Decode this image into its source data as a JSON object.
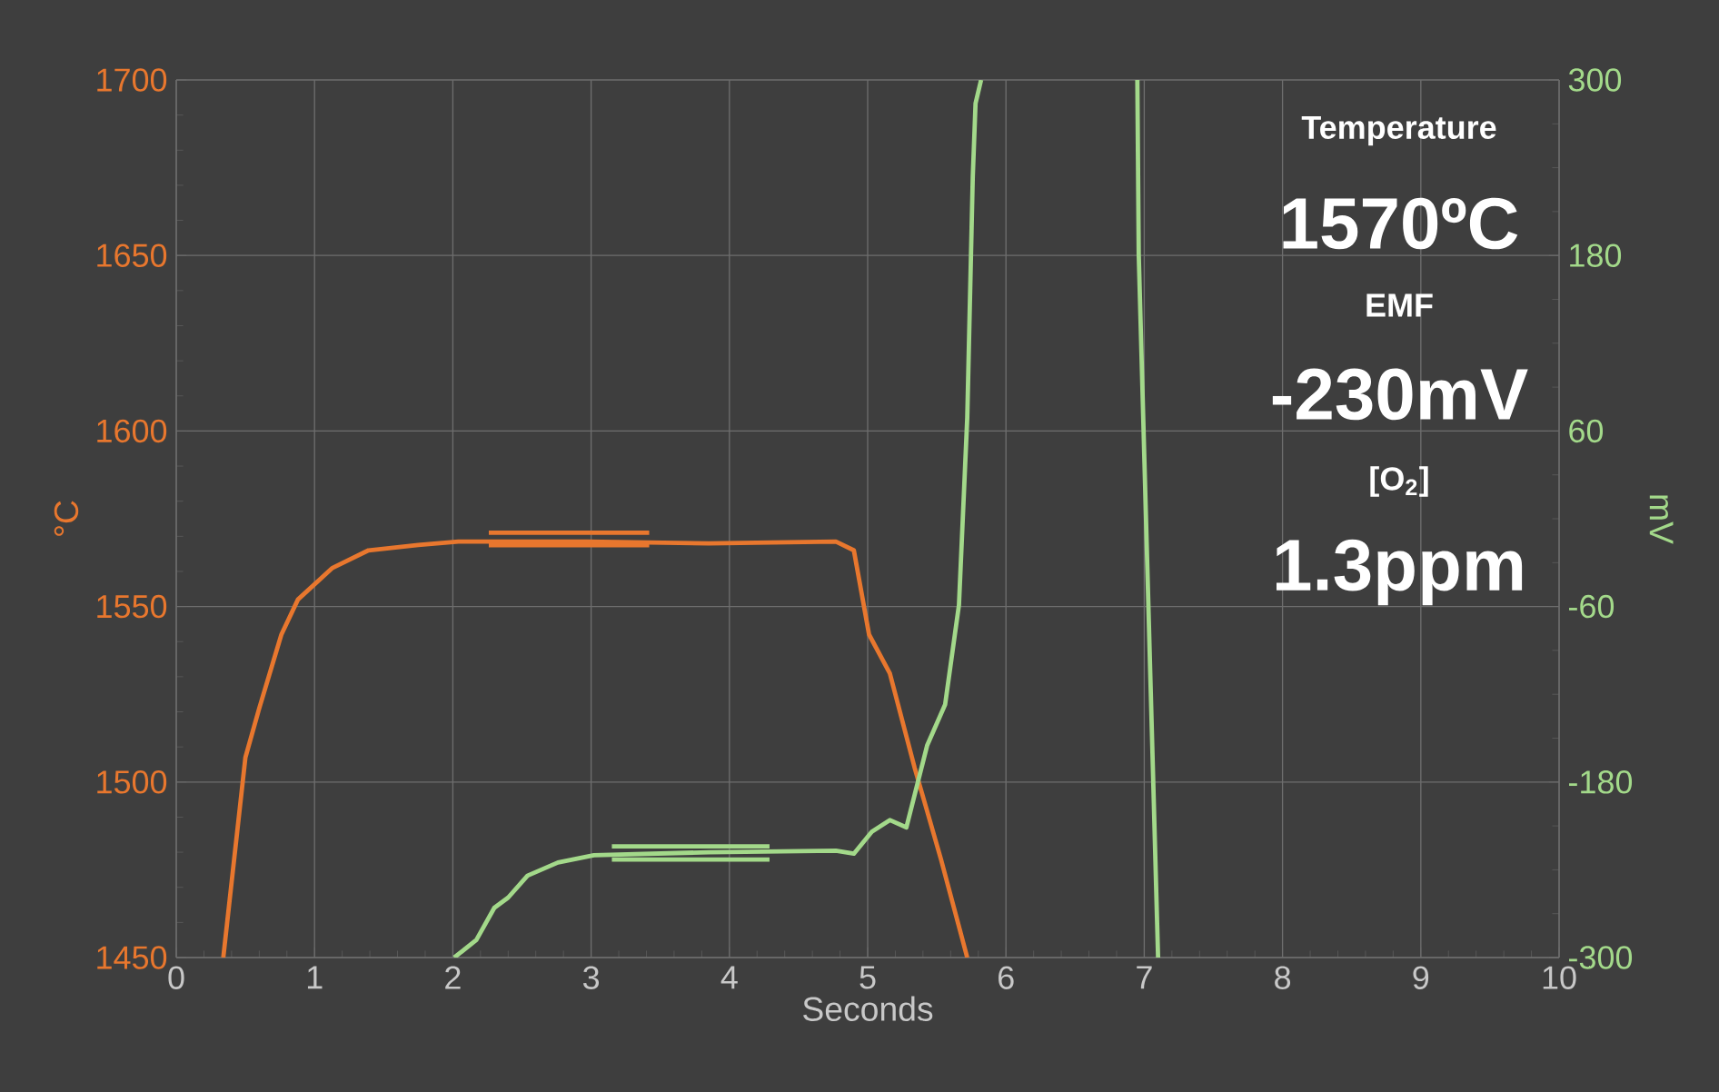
{
  "chart_data": {
    "type": "line",
    "xlabel": "Seconds",
    "ylabel": "°C",
    "y2label": "mV",
    "xlim": [
      0,
      10
    ],
    "xticks": [
      0,
      1,
      2,
      3,
      4,
      5,
      6,
      7,
      8,
      9,
      10
    ],
    "ylim": [
      1450,
      1700
    ],
    "yticks": [
      1450,
      1500,
      1550,
      1600,
      1650,
      1700
    ],
    "y2lim": [
      -300,
      300
    ],
    "y2ticks": [
      -300,
      -180,
      -60,
      60,
      180,
      300
    ],
    "grid": true,
    "line_style": "solid",
    "marker": "none",
    "series": [
      {
        "color": "#e8772e",
        "x": [
          0.34,
          0.5,
          0.6,
          0.76,
          0.88,
          1.13,
          1.39,
          1.75,
          2.04,
          2.97,
          3.85,
          4.77,
          4.9,
          5.01,
          5.16,
          5.34,
          5.53,
          5.72
        ],
        "values": [
          1450,
          1507,
          1521,
          1542,
          1552,
          1561,
          1566,
          1567.5,
          1568.5,
          1568.5,
          1568,
          1568.5,
          1566,
          1542,
          1531,
          1504,
          1478,
          1450
        ]
      },
      {
        "color": "#a3d98a",
        "axis": "y2",
        "x": [
          2.01,
          2.17,
          2.3,
          2.4,
          2.54,
          2.76,
          3.02,
          3.85,
          4.77,
          4.9,
          5.03,
          5.16,
          5.28,
          5.43,
          5.56,
          5.66,
          5.72,
          5.76,
          5.78,
          5.82,
          6.4,
          6.95,
          6.96,
          7.1
        ],
        "values": [
          -300,
          -288,
          -266,
          -259,
          -244,
          -235,
          -230,
          -228,
          -227,
          -229,
          -214,
          -206,
          -211,
          -155,
          -127,
          -59,
          69,
          234,
          284,
          300,
          null,
          300,
          181,
          -300
        ]
      },
      {
        "color": "#e8772e",
        "x": [
          2.26,
          3.42
        ],
        "values": [
          1571,
          1571
        ]
      },
      {
        "color": "#e8772e",
        "x": [
          2.26,
          3.42
        ],
        "values": [
          1567.5,
          1567.5
        ]
      },
      {
        "color": "#a3d98a",
        "axis": "y2",
        "x": [
          3.15,
          4.29
        ],
        "values": [
          -224,
          -224
        ]
      },
      {
        "color": "#a3d98a",
        "axis": "y2",
        "x": [
          3.15,
          4.29
        ],
        "values": [
          -233,
          -233
        ]
      }
    ],
    "annotations": [
      "Temperature",
      "1570ºC",
      "EMF",
      "-230mV",
      "[O$_{2}$]",
      "1.3ppm"
    ]
  }
}
